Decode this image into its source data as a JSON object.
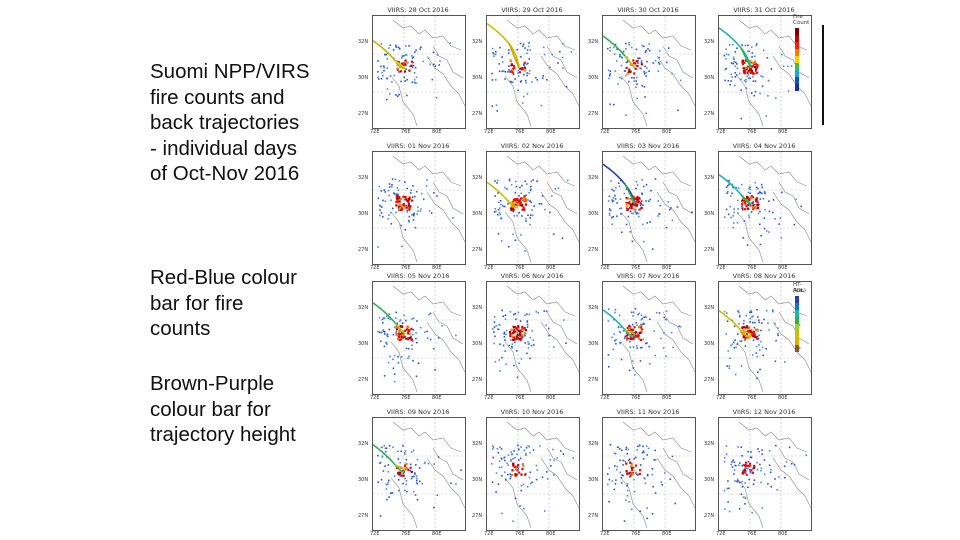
{
  "captions": [
    {
      "lines": [
        "Suomi NPP/VIRS",
        "fire counts and",
        "back trajectories",
        "- individual days",
        "of Oct-Nov 2016"
      ]
    },
    {
      "lines": [
        "Red-Blue colour",
        "bar for fire",
        "counts"
      ]
    },
    {
      "lines": [
        "Brown-Purple",
        "colour bar for",
        "trajectory height"
      ]
    }
  ],
  "panels": [
    {
      "title": "VIIRS: 28 Oct 2016",
      "trajectory": true,
      "traj_colors": [
        "#c8b400",
        "#e0d000"
      ],
      "fire": "low"
    },
    {
      "title": "VIIRS: 29 Oct 2016",
      "trajectory": true,
      "traj_colors": [
        "#c8c000",
        "#d8a000"
      ],
      "fire": "low"
    },
    {
      "title": "VIIRS: 30 Oct 2016",
      "trajectory": true,
      "traj_colors": [
        "#2bb24c",
        "#c8c000"
      ],
      "fire": "low"
    },
    {
      "title": "VIIRS: 31 Oct 2016",
      "trajectory": true,
      "traj_colors": [
        "#18b8b0",
        "#2bb24c"
      ],
      "fire": "high"
    },
    {
      "title": "VIIRS: 01 Nov 2016",
      "trajectory": false,
      "traj_colors": [],
      "fire": "high"
    },
    {
      "title": "VIIRS: 02 Nov 2016",
      "trajectory": true,
      "traj_colors": [
        "#c8c000",
        "#e0b000"
      ],
      "fire": "high"
    },
    {
      "title": "VIIRS: 03 Nov 2016",
      "trajectory": true,
      "traj_colors": [
        "#2a3fb0",
        "#2bb24c"
      ],
      "fire": "high"
    },
    {
      "title": "VIIRS: 04 Nov 2016",
      "trajectory": true,
      "traj_colors": [
        "#18b8b0",
        "#2bb24c"
      ],
      "fire": "high"
    },
    {
      "title": "VIIRS: 05 Nov 2016",
      "trajectory": true,
      "traj_colors": [
        "#2bb24c",
        "#c8c000"
      ],
      "fire": "high"
    },
    {
      "title": "VIIRS: 06 Nov 2016",
      "trajectory": false,
      "traj_colors": [],
      "fire": "high"
    },
    {
      "title": "VIIRS: 07 Nov 2016",
      "trajectory": true,
      "traj_colors": [
        "#18b8b0",
        "#c8c000"
      ],
      "fire": "high"
    },
    {
      "title": "VIIRS: 08 Nov 2016",
      "trajectory": true,
      "traj_colors": [
        "#c8c000",
        "#e0b000"
      ],
      "fire": "high"
    },
    {
      "title": "VIIRS: 09 Nov 2016",
      "trajectory": true,
      "traj_colors": [
        "#2bb24c",
        "#c8c000"
      ],
      "fire": "low"
    },
    {
      "title": "VIIRS: 10 Nov 2016",
      "trajectory": false,
      "traj_colors": [],
      "fire": "low"
    },
    {
      "title": "VIIRS: 11 Nov 2016",
      "trajectory": false,
      "traj_colors": [],
      "fire": "low"
    },
    {
      "title": "VIIRS: 12 Nov 2016",
      "trajectory": false,
      "traj_colors": [],
      "fire": "low"
    }
  ],
  "y_ticks": [
    "32N",
    "30N",
    "27N"
  ],
  "x_ticks": [
    "72E",
    "76E",
    "80E"
  ],
  "fire_colorbar": {
    "title": [
      "Fire",
      "Count"
    ],
    "colors": [
      "#7a0000",
      "#c00000",
      "#ff2000",
      "#ff7a00",
      "#ffd000",
      "#40c040",
      "#20a0e0",
      "#1050c0",
      "#1c2fa0"
    ],
    "labels": [
      "",
      "",
      "",
      "",
      "",
      "",
      "",
      "",
      ""
    ]
  },
  "traj_colorbar": {
    "title": [
      "HT-AGL",
      "(km)"
    ],
    "colors": [
      "#2a3fb0",
      "#1a70d0",
      "#18b8b0",
      "#2bb24c",
      "#9fd030",
      "#c8c000",
      "#e0b000",
      "#8a5a20"
    ],
    "labels": [
      "",
      "",
      "",
      "",
      "",
      "",
      "",
      ""
    ]
  }
}
